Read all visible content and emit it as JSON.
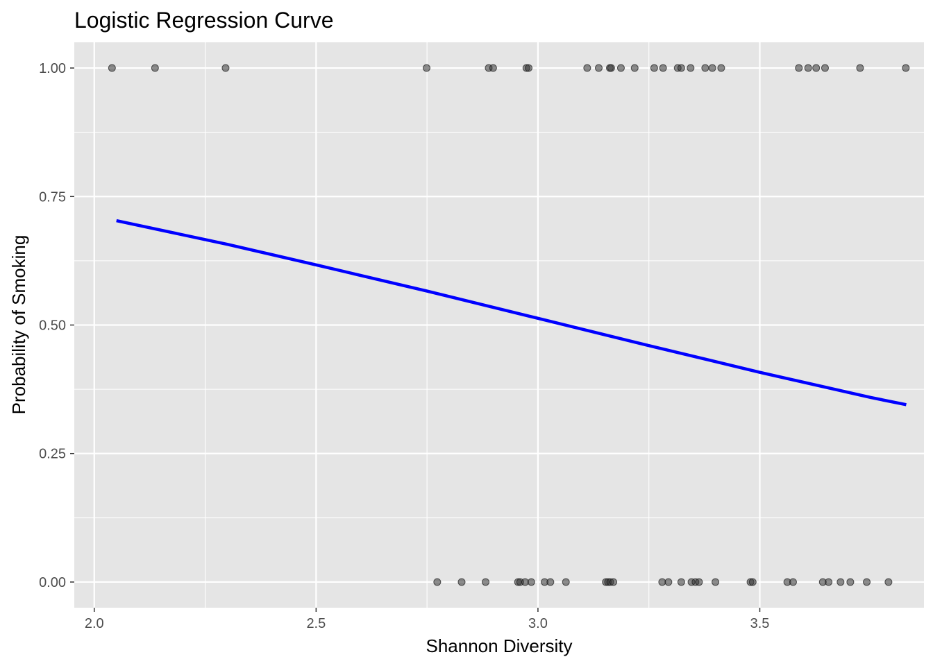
{
  "chart_data": {
    "type": "scatter",
    "title": "Logistic Regression Curve",
    "xlabel": "Shannon Diversity",
    "ylabel": "Probability of Smoking",
    "xlim": [
      1.955,
      3.87
    ],
    "ylim": [
      -0.05,
      1.05
    ],
    "x_ticks": [
      2.0,
      2.5,
      3.0,
      3.5
    ],
    "x_tick_labels": [
      "2.0",
      "2.5",
      "3.0",
      "3.5"
    ],
    "y_ticks": [
      0.0,
      0.25,
      0.5,
      0.75,
      1.0
    ],
    "y_tick_labels": [
      "0.00",
      "0.25",
      "0.50",
      "0.75",
      "1.00"
    ],
    "grid": true,
    "legend": "none",
    "colors": {
      "panel_background": "#e5e5e5",
      "grid": "#ffffff",
      "points": "#333333",
      "curve": "#0000ff",
      "tick_text": "#4d4d4d"
    },
    "series": [
      {
        "kind": "points",
        "points": [
          [
            2.04,
            1
          ],
          [
            2.137,
            1
          ],
          [
            2.296,
            1
          ],
          [
            2.749,
            1
          ],
          [
            2.889,
            1
          ],
          [
            2.899,
            1
          ],
          [
            2.974,
            1
          ],
          [
            2.979,
            1
          ],
          [
            3.111,
            1
          ],
          [
            3.137,
            1
          ],
          [
            3.162,
            1
          ],
          [
            3.165,
            1
          ],
          [
            3.187,
            1
          ],
          [
            3.218,
            1
          ],
          [
            3.262,
            1
          ],
          [
            3.282,
            1
          ],
          [
            3.315,
            1
          ],
          [
            3.323,
            1
          ],
          [
            3.344,
            1
          ],
          [
            3.377,
            1
          ],
          [
            3.393,
            1
          ],
          [
            3.413,
            1
          ],
          [
            3.588,
            1
          ],
          [
            3.609,
            1
          ],
          [
            3.627,
            1
          ],
          [
            3.647,
            1
          ],
          [
            3.726,
            1
          ],
          [
            3.829,
            1
          ],
          [
            2.773,
            0
          ],
          [
            2.828,
            0
          ],
          [
            2.882,
            0
          ],
          [
            2.955,
            0
          ],
          [
            2.96,
            0
          ],
          [
            2.971,
            0
          ],
          [
            2.985,
            0
          ],
          [
            3.015,
            0
          ],
          [
            3.028,
            0
          ],
          [
            3.063,
            0
          ],
          [
            3.153,
            0
          ],
          [
            3.158,
            0
          ],
          [
            3.163,
            0
          ],
          [
            3.17,
            0
          ],
          [
            3.28,
            0
          ],
          [
            3.294,
            0
          ],
          [
            3.323,
            0
          ],
          [
            3.346,
            0
          ],
          [
            3.355,
            0
          ],
          [
            3.363,
            0
          ],
          [
            3.4,
            0
          ],
          [
            3.479,
            0
          ],
          [
            3.484,
            0
          ],
          [
            3.562,
            0
          ],
          [
            3.575,
            0
          ],
          [
            3.642,
            0
          ],
          [
            3.655,
            0
          ],
          [
            3.682,
            0
          ],
          [
            3.704,
            0
          ],
          [
            3.741,
            0
          ],
          [
            3.79,
            0
          ]
        ]
      },
      {
        "kind": "line",
        "x": [
          2.05,
          2.3,
          2.5,
          2.75,
          3.0,
          3.25,
          3.5,
          3.75,
          3.83
        ],
        "y": [
          0.703,
          0.657,
          0.617,
          0.566,
          0.513,
          0.46,
          0.408,
          0.359,
          0.345
        ]
      }
    ]
  }
}
